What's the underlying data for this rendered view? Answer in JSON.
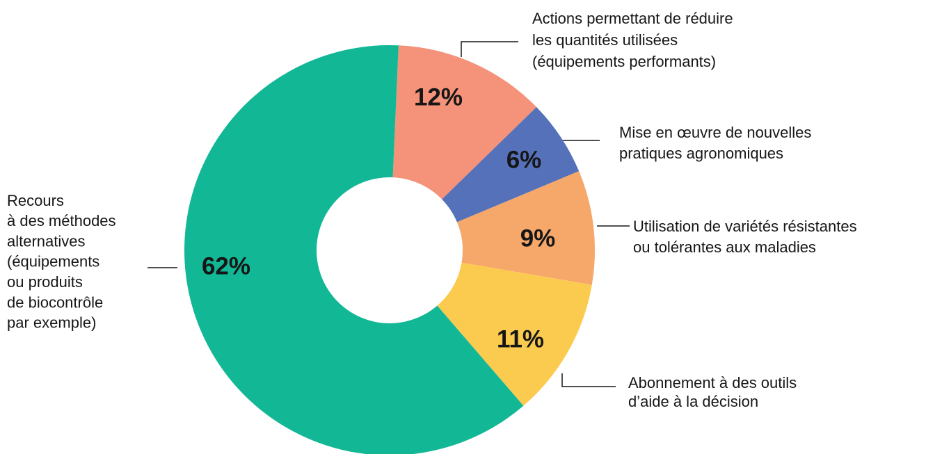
{
  "chart_data": {
    "type": "donut",
    "categories": [
      [
        "Actions permettant de réduire",
        "les quantités utilisées",
        "(équipements performants)"
      ],
      [
        "Mise en œuvre de nouvelles",
        "pratiques agronomiques"
      ],
      [
        "Utilisation de variétés résistantes",
        "ou tolérantes aux maladies"
      ],
      [
        "Abonnement à des outils",
        "d’aide à la décision"
      ],
      [
        "Recours",
        "à des méthodes",
        "alternatives",
        "(équipements",
        "ou produits",
        "de biocontrôle",
        "par exemple)"
      ]
    ],
    "values": [
      12,
      6,
      9,
      11,
      62
    ],
    "value_labels": [
      "12%",
      "6%",
      "9%",
      "11%",
      "62%"
    ],
    "colors": [
      "#f4927a",
      "#5571b9",
      "#f6a76a",
      "#fbcb50",
      "#12b796"
    ]
  }
}
